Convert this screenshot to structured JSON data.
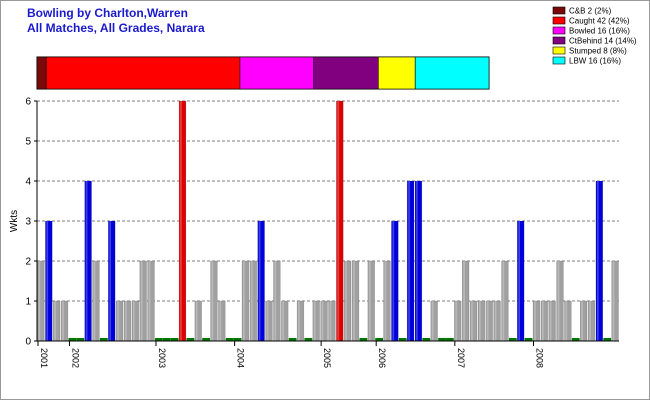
{
  "header": {
    "title_line1": "Bowling by Charlton,Warren",
    "title_line2": "All Matches, All Grades, Narara"
  },
  "chart_data": {
    "type": "bar",
    "ylabel": "Wkts",
    "ylim": [
      0,
      6
    ],
    "yticks": [
      "0",
      "1",
      "2",
      "3",
      "4",
      "5",
      "6"
    ],
    "grid": "horizontal dashed",
    "year_labels": [
      "2001",
      "2002",
      "2003",
      "2004",
      "2005",
      "2006",
      "2007",
      "2008"
    ],
    "year_label_index": [
      0,
      4,
      15,
      25,
      36,
      43,
      53,
      63
    ],
    "wickets_per_match": [
      2,
      3,
      1,
      1,
      0,
      0,
      4,
      2,
      0,
      3,
      1,
      1,
      1,
      2,
      2,
      0,
      0,
      0,
      6,
      0,
      1,
      0,
      2,
      1,
      0,
      0,
      2,
      2,
      3,
      1,
      2,
      1,
      0,
      1,
      0,
      1,
      1,
      1,
      6,
      2,
      2,
      0,
      2,
      0,
      2,
      3,
      0,
      4,
      4,
      0,
      1,
      0,
      0,
      1,
      2,
      1,
      1,
      1,
      1,
      2,
      0,
      3,
      0,
      1,
      1,
      1,
      2,
      1,
      0,
      1,
      1,
      4,
      0,
      2
    ],
    "series_colors": {
      "0": "#007700",
      "1": "#a0a0a0",
      "2": "#a0a0a0",
      "3": "#0000dd",
      "4": "#0000dd",
      "5": "#dd0000",
      "6": "#dd0000"
    },
    "dismissal_breakdown": [
      {
        "label": "C&B 2 (2%)",
        "value": 2,
        "color": "#7a0a0a"
      },
      {
        "label": "Caught 42 (42%)",
        "value": 42,
        "color": "#ff0000"
      },
      {
        "label": "Bowled 16 (16%)",
        "value": 16,
        "color": "#ff00ff"
      },
      {
        "label": "CtBehind 14 (14%)",
        "value": 14,
        "color": "#800080"
      },
      {
        "label": "Stumped 8 (8%)",
        "value": 8,
        "color": "#ffff00"
      },
      {
        "label": "LBW 16 (16%)",
        "value": 16,
        "color": "#00ffff"
      }
    ]
  }
}
